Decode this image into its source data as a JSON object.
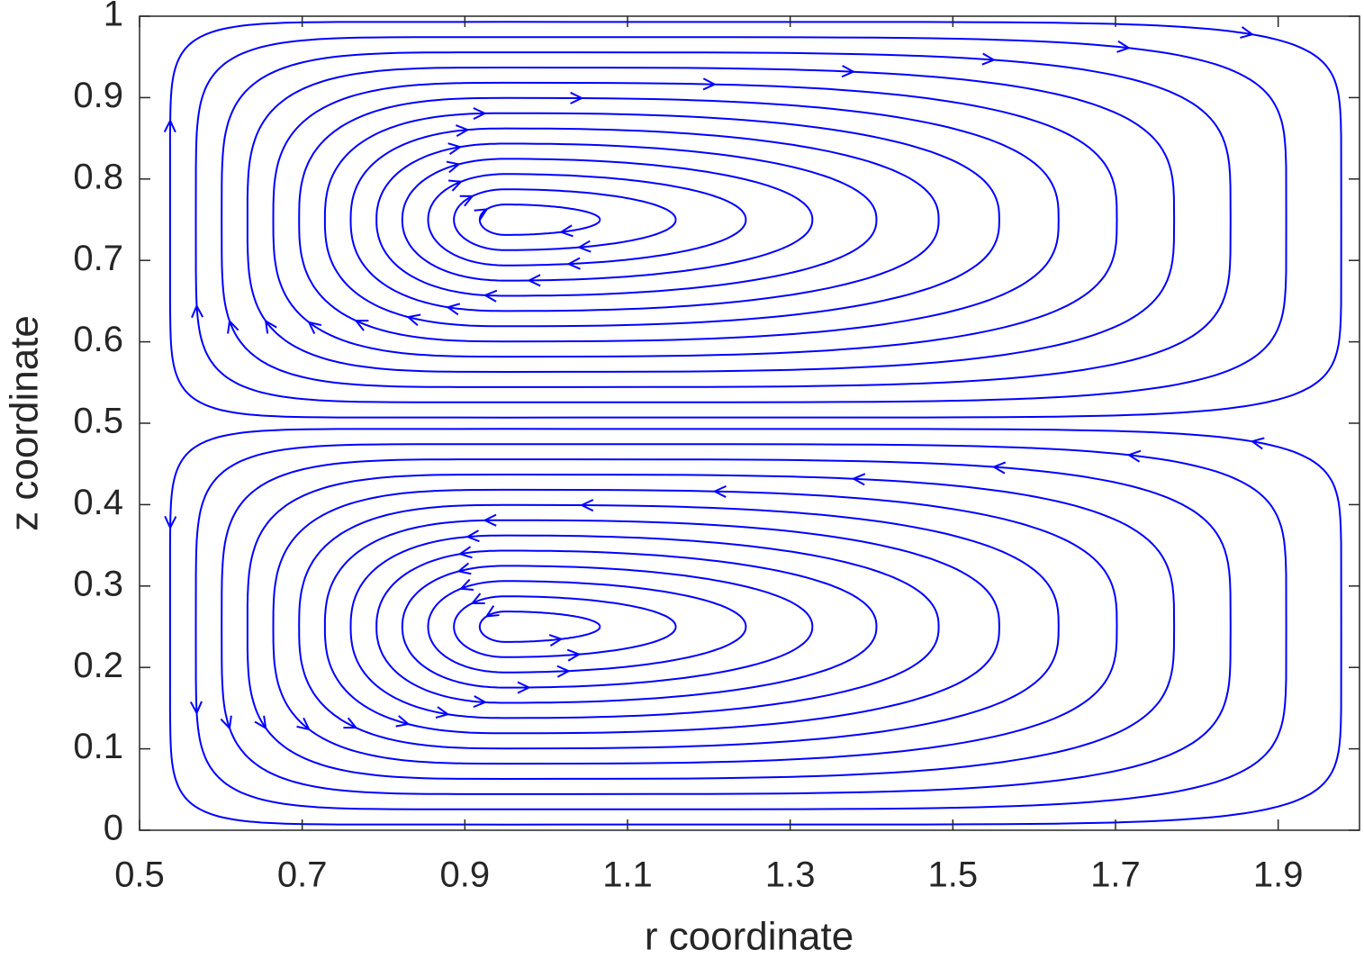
{
  "chart_data": {
    "type": "streamline",
    "x_label": "r coordinate",
    "y_label": "z coordinate",
    "xlim": [
      0.5,
      2
    ],
    "ylim": [
      0,
      1
    ],
    "xticks": [
      0.5,
      0.7,
      0.9,
      1.1,
      1.3,
      1.5,
      1.7,
      1.9
    ],
    "yticks": [
      0,
      0.1,
      0.2,
      0.3,
      0.4,
      0.5,
      0.6,
      0.7,
      0.8,
      0.9,
      1
    ],
    "color": "#0000ff",
    "grid": false
  }
}
